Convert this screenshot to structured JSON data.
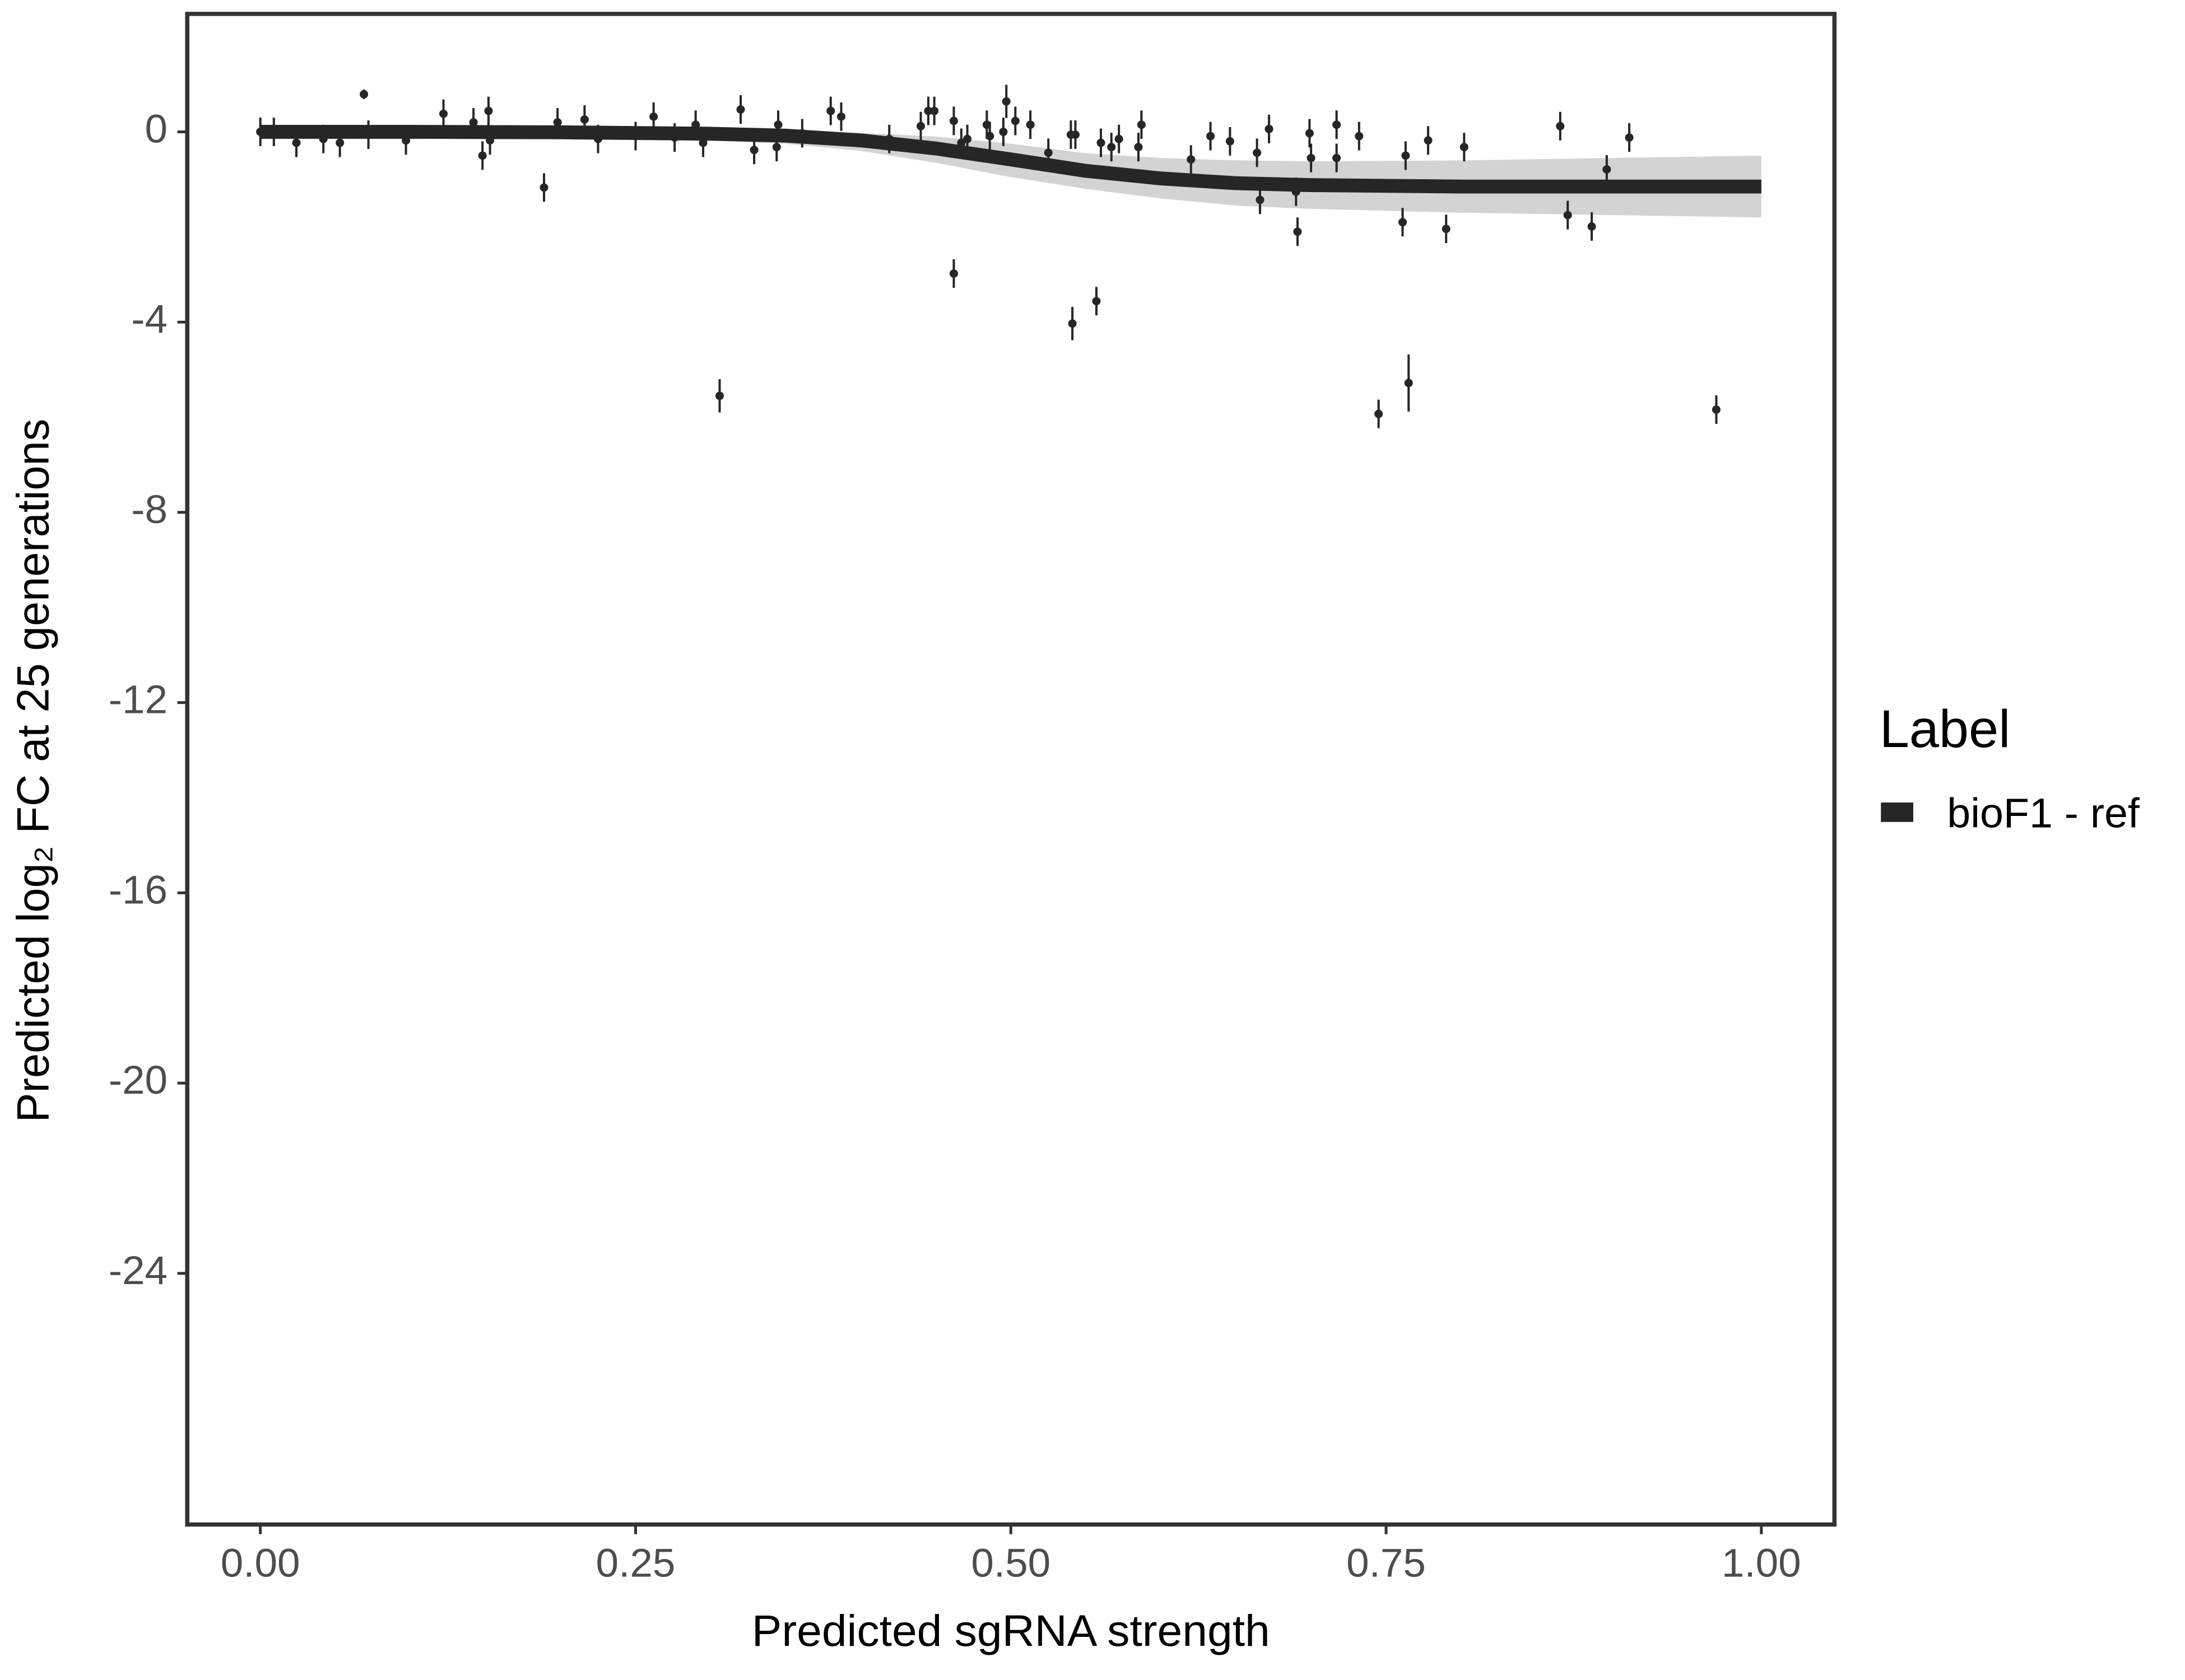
{
  "chart_data": {
    "type": "scatter",
    "xlabel": "Predicted sgRNA strength",
    "ylabel": "Predicted  log₂ FC at 25 generations",
    "xlim": [
      -0.0487,
      1.0487
    ],
    "ylim": [
      -29.28,
      2.48
    ],
    "xticks": [
      {
        "value": 0,
        "label": "0.00"
      },
      {
        "value": 0.25,
        "label": "0.25"
      },
      {
        "value": 0.5,
        "label": "0.50"
      },
      {
        "value": 0.75,
        "label": "0.75"
      },
      {
        "value": 1,
        "label": "1.00"
      }
    ],
    "yticks": [
      0,
      -4,
      -8,
      -12,
      -16,
      -20,
      -24
    ],
    "grid": false,
    "legend_title": "Label",
    "legend_position": "right",
    "band_color": "#b5b5b5",
    "point_color": "#262626",
    "series": [
      {
        "name": "bioF1 - ref",
        "color": "#262626",
        "x": [
          0,
          0.1,
          0.2,
          0.3,
          0.35,
          0.4,
          0.45,
          0.5,
          0.55,
          0.6,
          0.65,
          0.7,
          0.8,
          0.9,
          1.0
        ],
        "values": [
          0,
          0,
          -0.01,
          -0.04,
          -0.08,
          -0.18,
          -0.35,
          -0.58,
          -0.82,
          -0.98,
          -1.08,
          -1.12,
          -1.15,
          -1.15,
          -1.15
        ],
        "lower": [
          -0.12,
          -0.1,
          -0.12,
          -0.18,
          -0.25,
          -0.4,
          -0.65,
          -0.95,
          -1.2,
          -1.4,
          -1.55,
          -1.62,
          -1.7,
          -1.75,
          -1.8
        ],
        "upper": [
          0.1,
          0.1,
          0.08,
          0.05,
          0.02,
          -0.02,
          -0.1,
          -0.25,
          -0.45,
          -0.55,
          -0.6,
          -0.62,
          -0.6,
          -0.55,
          -0.5
        ]
      }
    ],
    "points": {
      "x": [
        0,
        0.009,
        0.024,
        0.042,
        0.053,
        0.069,
        0.072,
        0.097,
        0.122,
        0.142,
        0.148,
        0.152,
        0.153,
        0.189,
        0.198,
        0.216,
        0.225,
        0.25,
        0.262,
        0.276,
        0.29,
        0.295,
        0.306,
        0.32,
        0.329,
        0.344,
        0.345,
        0.361,
        0.38,
        0.387,
        0.419,
        0.44,
        0.445,
        0.449,
        0.462,
        0.462,
        0.467,
        0.471,
        0.484,
        0.486,
        0.497,
        0.495,
        0.503,
        0.513,
        0.525,
        0.541,
        0.54,
        0.543,
        0.557,
        0.56,
        0.567,
        0.572,
        0.585,
        0.587,
        0.62,
        0.633,
        0.646,
        0.664,
        0.666,
        0.672,
        0.69,
        0.691,
        0.699,
        0.7,
        0.717,
        0.717,
        0.732,
        0.745,
        0.761,
        0.763,
        0.765,
        0.778,
        0.79,
        0.802,
        0.866,
        0.871,
        0.887,
        0.897,
        0.912,
        0.97
      ],
      "y": [
        0,
        0,
        -0.23,
        -0.15,
        -0.23,
        0.79,
        -0.06,
        -0.18,
        0.38,
        0.2,
        -0.5,
        0.44,
        -0.18,
        -1.17,
        0.2,
        0.26,
        -0.15,
        -0.09,
        0.32,
        -0.12,
        0.15,
        -0.23,
        -5.55,
        0.47,
        -0.38,
        -0.32,
        0.15,
        -0.03,
        0.44,
        0.32,
        -0.15,
        0.12,
        0.44,
        0.44,
        -2.98,
        0.23,
        -0.23,
        -0.15,
        0.15,
        -0.09,
        0.64,
        0,
        0.23,
        0.15,
        -0.44,
        -4.03,
        -0.06,
        -0.06,
        -3.56,
        -0.23,
        -0.32,
        -0.15,
        -0.32,
        0.15,
        -0.58,
        -0.09,
        -0.2,
        -0.44,
        -1.43,
        0.06,
        -1.26,
        -2.1,
        -0.03,
        -0.55,
        0.15,
        -0.55,
        -0.09,
        -5.93,
        -1.9,
        -0.5,
        -5.28,
        -0.18,
        -2.04,
        -0.32,
        0.12,
        -1.75,
        -1.99,
        -0.79,
        -0.12,
        -5.84
      ],
      "error": [
        0.3,
        0.3,
        0.3,
        0.3,
        0.3,
        0.1,
        0.3,
        0.3,
        0.3,
        0.3,
        0.3,
        0.3,
        0.3,
        0.3,
        0.3,
        0.3,
        0.3,
        0.3,
        0.3,
        0.3,
        0.3,
        0.3,
        0.35,
        0.3,
        0.3,
        0.3,
        0.3,
        0.3,
        0.3,
        0.3,
        0.3,
        0.3,
        0.3,
        0.3,
        0.3,
        0.3,
        0.3,
        0.3,
        0.3,
        0.3,
        0.35,
        0.3,
        0.3,
        0.3,
        0.3,
        0.35,
        0.3,
        0.3,
        0.3,
        0.3,
        0.3,
        0.3,
        0.3,
        0.3,
        0.3,
        0.3,
        0.3,
        0.3,
        0.3,
        0.3,
        0.3,
        0.3,
        0.3,
        0.3,
        0.3,
        0.3,
        0.3,
        0.3,
        0.3,
        0.3,
        0.6,
        0.3,
        0.3,
        0.3,
        0.3,
        0.3,
        0.3,
        0.3,
        0.3,
        0.3
      ]
    }
  }
}
